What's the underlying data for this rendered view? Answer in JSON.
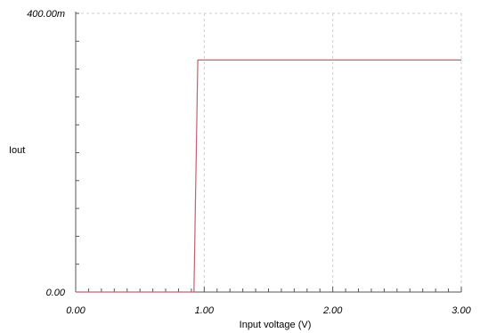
{
  "chart_data": {
    "type": "line",
    "xlabel": "Input voltage (V)",
    "ylabel": "Iout",
    "xlim": [
      0,
      3
    ],
    "ylim": [
      0,
      0.4
    ],
    "x_ticks": [
      {
        "value": 0,
        "label": "0.00"
      },
      {
        "value": 1,
        "label": "1.00"
      },
      {
        "value": 2,
        "label": "2.00"
      },
      {
        "value": 3,
        "label": "3.00"
      }
    ],
    "y_ticks": [
      {
        "value": 0,
        "label": "0.00"
      },
      {
        "value": 0.4,
        "label": "400.00m"
      }
    ],
    "x_minor_step": 0.1,
    "y_minor_step": 0.04,
    "grid": {
      "x_dashed_at": [
        1,
        2,
        3
      ],
      "y_dashed_at": [
        0.4
      ]
    },
    "series": [
      {
        "color": "#c06070",
        "x": [
          0.0,
          0.92,
          0.95,
          3.0
        ],
        "y": [
          0.0,
          0.0,
          0.333,
          0.333
        ]
      }
    ]
  },
  "colors": {
    "axis": "#555555",
    "grid": "#cfcfcf"
  }
}
